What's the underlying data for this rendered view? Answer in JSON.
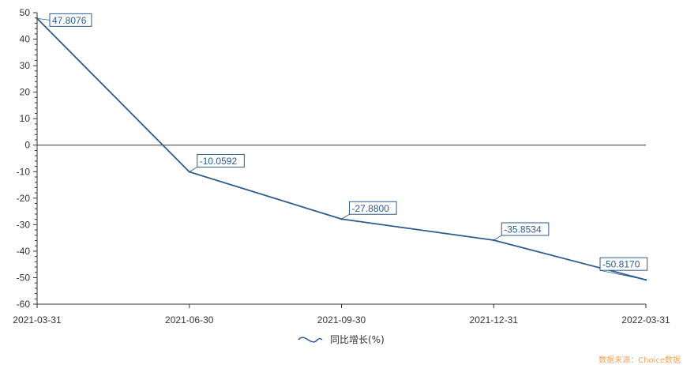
{
  "chart_data": {
    "type": "line",
    "title": "",
    "xlabel": "",
    "ylabel": "",
    "categories": [
      "2021-03-31",
      "2021-06-30",
      "2021-09-30",
      "2021-12-31",
      "2022-03-31"
    ],
    "series": [
      {
        "name": "同比增长(%)",
        "values": [
          47.8076,
          -10.0592,
          -27.88,
          -35.8534,
          -50.817
        ],
        "labels": [
          "47.8076",
          "-10.0592",
          "-27.8800",
          "-35.8534",
          "-50.8170"
        ]
      }
    ],
    "ylim": [
      -60,
      50
    ],
    "yticks": [
      50,
      40,
      30,
      20,
      10,
      0,
      -10,
      -20,
      -30,
      -40,
      -50,
      -60
    ],
    "ytick_labels": [
      "50",
      "40",
      "30",
      "20",
      "10",
      "0",
      "-10",
      "-20",
      "-30",
      "-40",
      "-50",
      "-60"
    ],
    "grid": false,
    "legend_position": "bottom-center",
    "colors": {
      "line": "#2f5b8c",
      "axis": "#333333",
      "label_border": "#2f5b8c",
      "source": "#f4a460"
    }
  },
  "legend": {
    "label": "同比增长(%)"
  },
  "source": {
    "text": "数据来源：Choice数据"
  }
}
